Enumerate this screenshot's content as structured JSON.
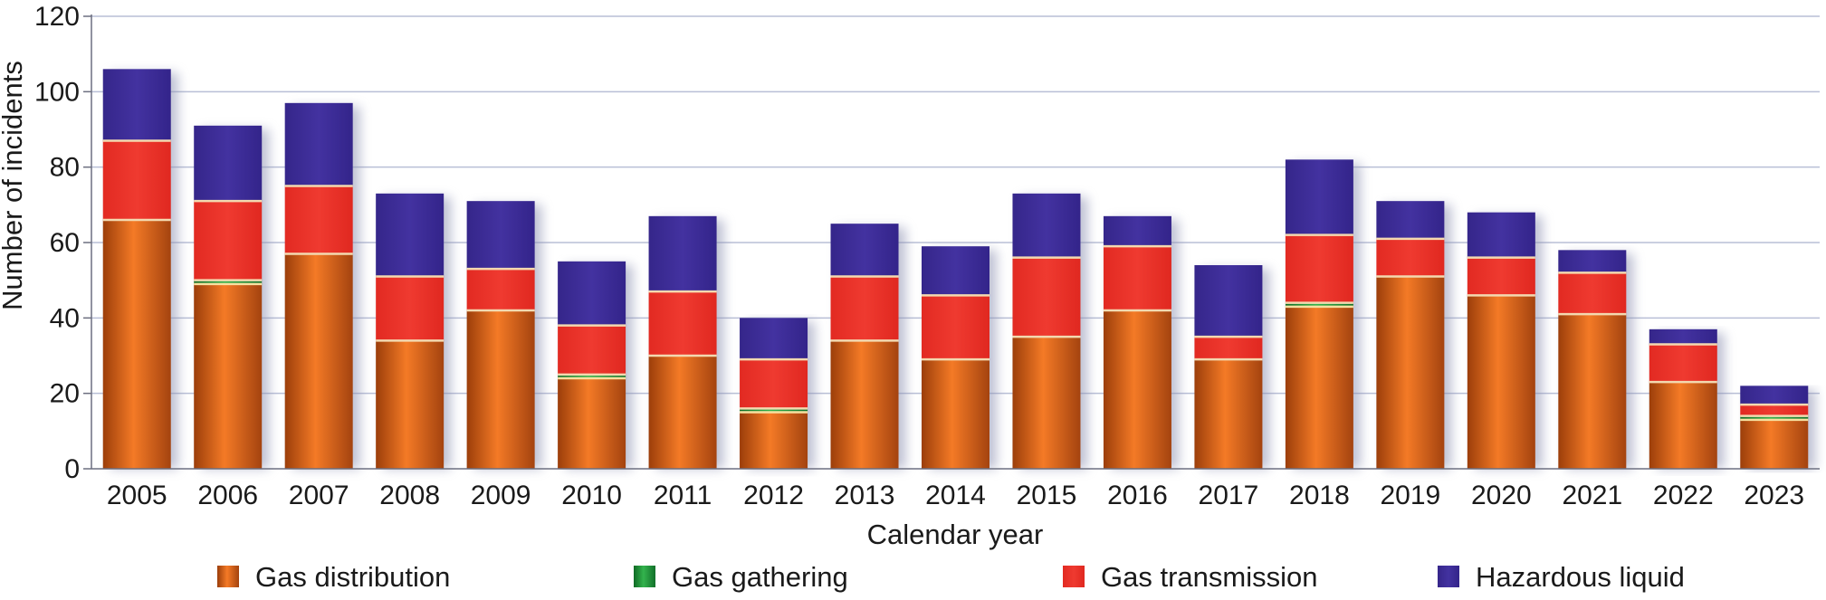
{
  "chart_data": {
    "type": "bar",
    "stacked": true,
    "xlabel": "Calendar year",
    "ylabel": "Number of incidents",
    "ylim": [
      0,
      120
    ],
    "yticks": [
      0,
      20,
      40,
      60,
      80,
      100,
      120
    ],
    "grid": true,
    "legend_position": "bottom",
    "categories": [
      "2005",
      "2006",
      "2007",
      "2008",
      "2009",
      "2010",
      "2011",
      "2012",
      "2013",
      "2014",
      "2015",
      "2016",
      "2017",
      "2018",
      "2019",
      "2020",
      "2021",
      "2022",
      "2023"
    ],
    "series": [
      {
        "name": "Gas distribution",
        "color": "#e8691f",
        "values": [
          66,
          49,
          57,
          34,
          42,
          24,
          30,
          15,
          34,
          29,
          35,
          42,
          29,
          43,
          51,
          46,
          41,
          23,
          13
        ]
      },
      {
        "name": "Gas gathering",
        "color": "#1f9a3a",
        "values": [
          0,
          1,
          0,
          0,
          0,
          1,
          0,
          1,
          0,
          0,
          0,
          0,
          0,
          1,
          0,
          0,
          0,
          0,
          1
        ]
      },
      {
        "name": "Gas transmission",
        "color": "#e8281f",
        "values": [
          21,
          21,
          18,
          17,
          11,
          13,
          17,
          13,
          17,
          17,
          21,
          17,
          6,
          18,
          10,
          10,
          11,
          10,
          3
        ]
      },
      {
        "name": "Hazardous liquid",
        "color": "#3b2a92",
        "values": [
          19,
          20,
          22,
          22,
          18,
          17,
          20,
          11,
          14,
          13,
          17,
          8,
          19,
          20,
          10,
          12,
          6,
          4,
          5
        ]
      }
    ]
  }
}
